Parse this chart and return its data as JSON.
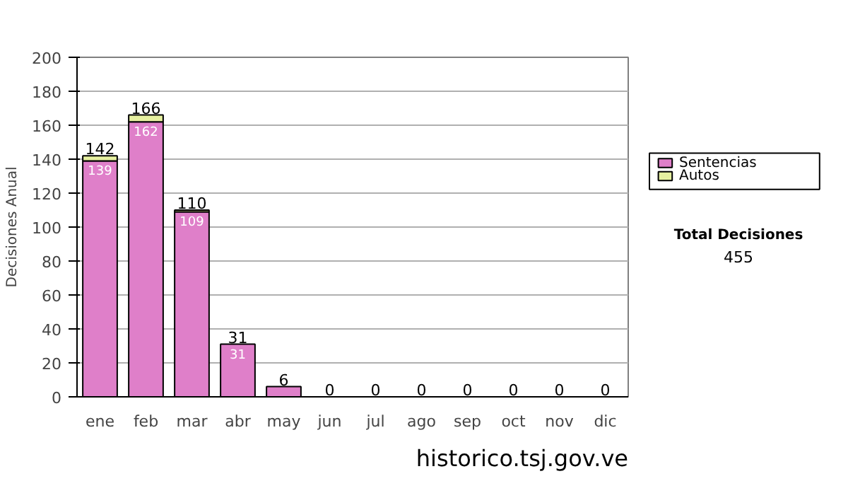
{
  "chart_data": {
    "type": "bar",
    "stacked": true,
    "ylabel": "Decisiones Anual",
    "categories": [
      "ene",
      "feb",
      "mar",
      "abr",
      "may",
      "jun",
      "jul",
      "ago",
      "sep",
      "oct",
      "nov",
      "dic"
    ],
    "series": [
      {
        "name": "Sentencias",
        "color": "#df7fc9",
        "values": [
          139,
          162,
          109,
          31,
          6,
          0,
          0,
          0,
          0,
          0,
          0,
          0
        ],
        "value_labels": [
          "139",
          "162",
          "109",
          "31",
          null,
          null,
          null,
          null,
          null,
          null,
          null,
          null
        ]
      },
      {
        "name": "Autos",
        "color": "#e6f0a0",
        "values": [
          3,
          4,
          1,
          0,
          0,
          0,
          0,
          0,
          0,
          0,
          0,
          0
        ]
      }
    ],
    "totals": [
      "142",
      "166",
      "110",
      "31",
      "6",
      "0",
      "0",
      "0",
      "0",
      "0",
      "0",
      "0"
    ],
    "ylim": [
      0,
      200
    ],
    "yticks": [
      0,
      20,
      40,
      60,
      80,
      100,
      120,
      140,
      160,
      180,
      200
    ],
    "grid": "y",
    "legend": "right",
    "annotations": [
      "Total Decisiones",
      "455",
      "historico.tsj.gov.ve"
    ]
  }
}
